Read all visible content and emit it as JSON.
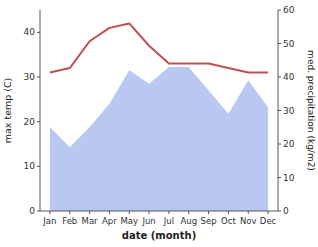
{
  "chart_data": {
    "type": "line",
    "xlabel": "date (month)",
    "ylabel": "max temp (C)",
    "y2label": "med. precipitation (kg/m2)",
    "categories": [
      "Jan",
      "Feb",
      "Mar",
      "Apr",
      "May",
      "Jun",
      "Jul",
      "Aug",
      "Sep",
      "Oct",
      "Nov",
      "Dec"
    ],
    "series": [
      {
        "type": "area",
        "axis": "y2",
        "color": "#b8c8f0",
        "values": [
          25,
          19,
          25,
          32,
          42,
          38,
          43,
          43,
          36,
          29,
          39,
          31
        ]
      },
      {
        "type": "line",
        "color": "#c0504d",
        "values": [
          31,
          32,
          38,
          41,
          42,
          37,
          33,
          33,
          33,
          32,
          31,
          31
        ]
      }
    ],
    "ylim": [
      0,
      45
    ],
    "yticks": [
      0,
      10,
      20,
      30,
      40
    ],
    "y2lim": [
      0,
      60
    ],
    "y2ticks": [
      0,
      10,
      20,
      30,
      40,
      50,
      60
    ],
    "grid": false
  }
}
